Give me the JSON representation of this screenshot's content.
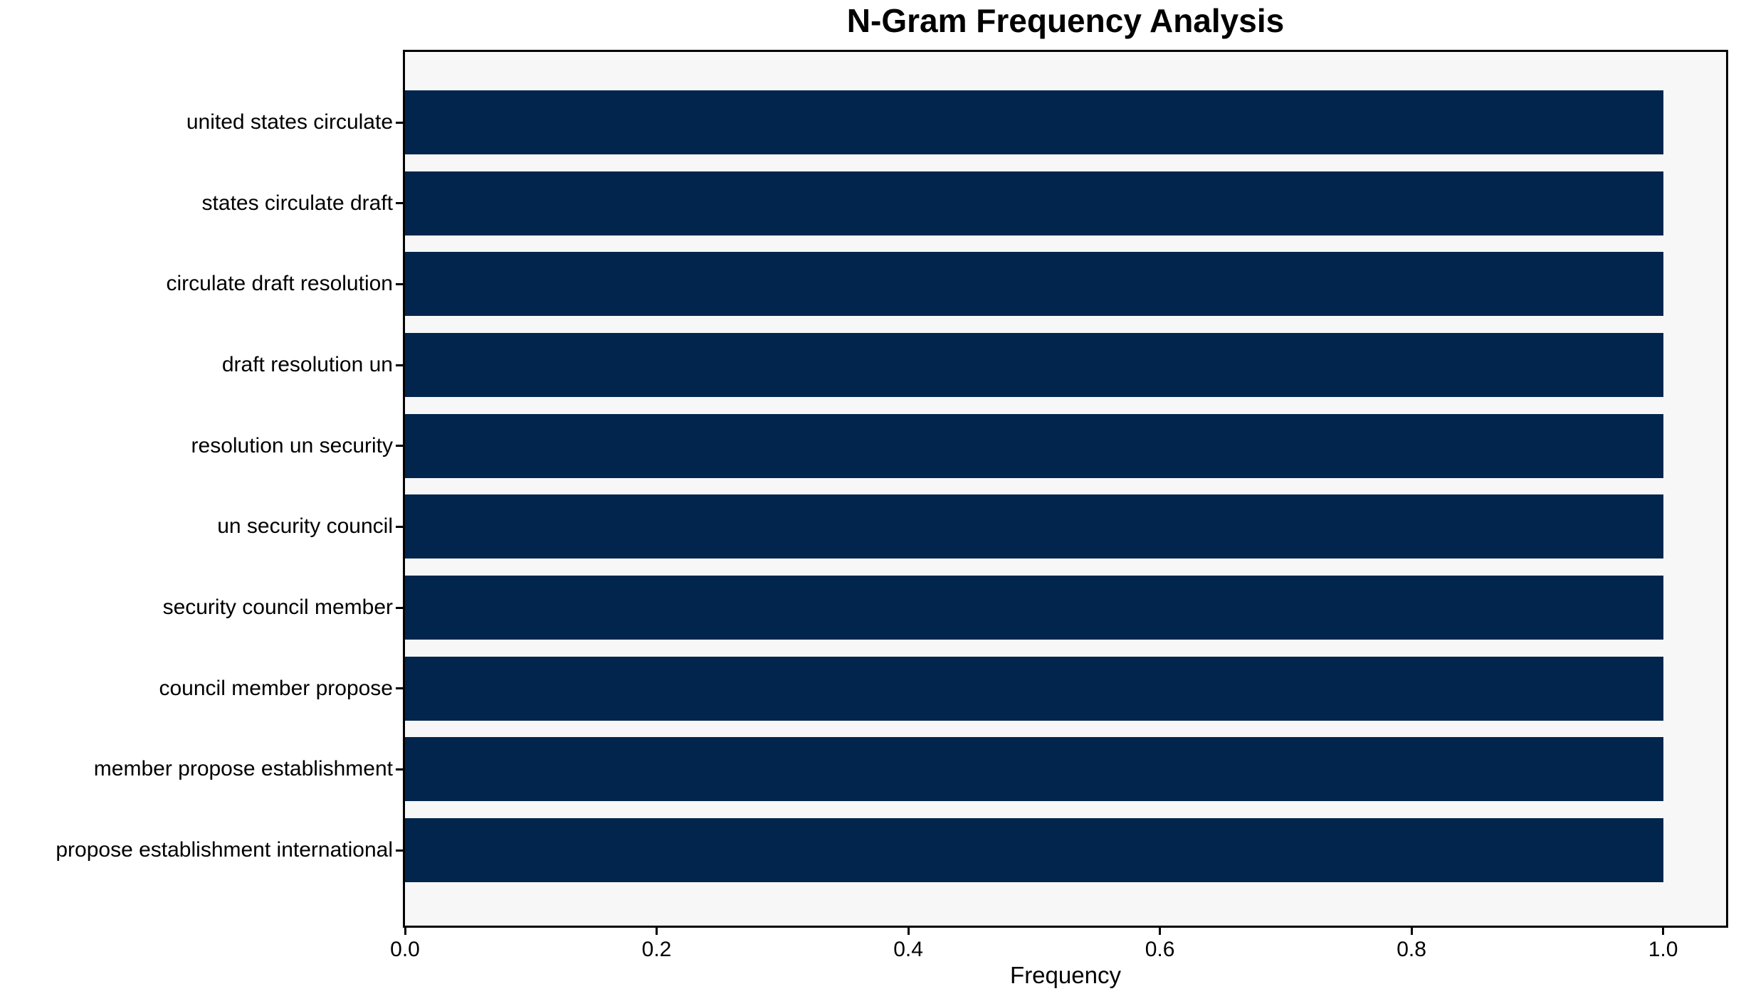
{
  "colors": {
    "bar": "#02254d",
    "plot_background": "#f7f7f7",
    "figure_background": "#ffffff",
    "spine": "#000000",
    "text": "#000000"
  },
  "chart_data": {
    "type": "bar",
    "orientation": "horizontal",
    "title": "N-Gram Frequency Analysis",
    "xlabel": "Frequency",
    "ylabel": "",
    "categories": [
      "united states circulate",
      "states circulate draft",
      "circulate draft resolution",
      "draft resolution un",
      "resolution un security",
      "un security council",
      "security council member",
      "council member propose",
      "member propose establishment",
      "propose establishment international"
    ],
    "values": [
      1.0,
      1.0,
      1.0,
      1.0,
      1.0,
      1.0,
      1.0,
      1.0,
      1.0,
      1.0
    ],
    "xlim": [
      0,
      1.05
    ],
    "x_tick_values": [
      0.0,
      0.2,
      0.4,
      0.6,
      0.8,
      1.0
    ],
    "x_tick_labels": [
      "0.0",
      "0.2",
      "0.4",
      "0.6",
      "0.8",
      "1.0"
    ],
    "grid": false,
    "legend": false,
    "bar_height_fraction": 0.8
  }
}
